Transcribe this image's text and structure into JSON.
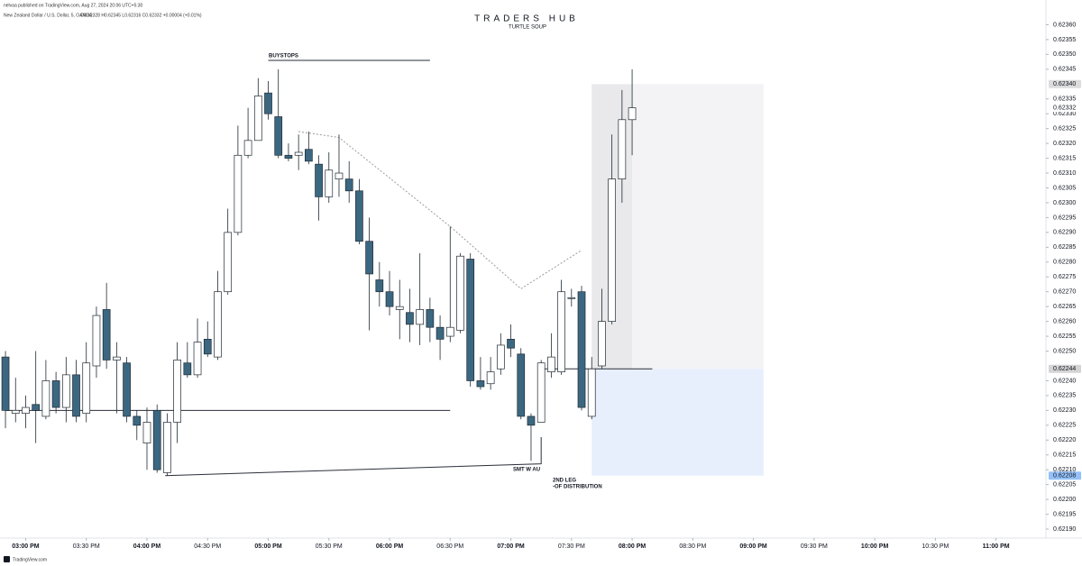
{
  "chart_data": {
    "type": "candlestick",
    "published": "nelvaa published on TradingView.com, Aug 27, 2024 20:06 UTC+5:30",
    "symbol": "New Zealand Dollar / U.S. Dollar, 5, OANDA",
    "ohlc_text": "O0.62328 H0.62345 L0.62316 C0.62332 +0.00004 (+0.01%)",
    "title": "TRADERS HUB",
    "subtitle": "TURTLE SOUP",
    "footer": "TradingView.com",
    "annotations": [
      "BUYSTOPS",
      "SMT W AU",
      "2ND LEG",
      "-OF DISTRIBUTION"
    ],
    "up_color": "#ffffff",
    "down_color": "#3c6781",
    "outline_color": "#1f2a33",
    "x": [
      890,
      895,
      900,
      905,
      910,
      915,
      920,
      925,
      930,
      935,
      940,
      945,
      950,
      955,
      960,
      965,
      970,
      975,
      980,
      985,
      990,
      995,
      1000,
      1005,
      1010,
      1015,
      1020,
      1025,
      1030,
      1035,
      1040,
      1045,
      1050,
      1055,
      1060,
      1065,
      1070,
      1075,
      1080,
      1085,
      1090,
      1095,
      1100,
      1105,
      1110,
      1115,
      1120,
      1125,
      1130,
      1135,
      1140,
      1145,
      1150,
      1155,
      1160,
      1165,
      1170,
      1175,
      1180,
      1185,
      1190,
      1195,
      1200
    ],
    "open": [
      0.62248,
      0.62229,
      0.62229,
      0.62232,
      0.62228,
      0.6224,
      0.62231,
      0.62242,
      0.62229,
      0.62245,
      0.62264,
      0.62247,
      0.62246,
      0.62228,
      0.62219,
      0.6223,
      0.62209,
      0.62226,
      0.62246,
      0.62242,
      0.62254,
      0.62248,
      0.6227,
      0.6229,
      0.62316,
      0.62321,
      0.62337,
      0.62329,
      0.62316,
      0.62316,
      0.62318,
      0.62313,
      0.62302,
      0.62308,
      0.62308,
      0.62304,
      0.62287,
      0.62274,
      0.6227,
      0.62264,
      0.62263,
      0.62259,
      0.62264,
      0.62258,
      0.62255,
      0.62257,
      0.62281,
      0.6224,
      0.62239,
      0.62244,
      0.62254,
      0.62249,
      0.62228,
      0.62226,
      0.62243,
      0.62243,
      0.62268,
      0.6227,
      0.62228,
      0.62245,
      0.6226,
      0.62308,
      0.62328
    ],
    "high": [
      0.6225,
      0.62241,
      0.62235,
      0.6225,
      0.62247,
      0.62243,
      0.62248,
      0.62247,
      0.62253,
      0.62265,
      0.62273,
      0.62253,
      0.62248,
      0.6223,
      0.62231,
      0.62232,
      0.62229,
      0.62253,
      0.62253,
      0.62261,
      0.6226,
      0.62277,
      0.62298,
      0.62326,
      0.62332,
      0.62342,
      0.62341,
      0.62345,
      0.6232,
      0.62323,
      0.62324,
      0.62316,
      0.62317,
      0.62323,
      0.62314,
      0.62308,
      0.62295,
      0.6228,
      0.62277,
      0.62274,
      0.62271,
      0.62283,
      0.62268,
      0.62262,
      0.62292,
      0.62283,
      0.62283,
      0.62248,
      0.62248,
      0.62256,
      0.62259,
      0.62251,
      0.62229,
      0.62247,
      0.62256,
      0.62274,
      0.62271,
      0.62272,
      0.62248,
      0.62271,
      0.62323,
      0.62338,
      0.62345
    ],
    "low": [
      0.62224,
      0.62226,
      0.62224,
      0.62219,
      0.62227,
      0.62229,
      0.62226,
      0.62226,
      0.62226,
      0.62241,
      0.62244,
      0.62229,
      0.62226,
      0.6222,
      0.6221,
      0.62209,
      0.62208,
      0.62219,
      0.62241,
      0.62241,
      0.62248,
      0.62247,
      0.62269,
      0.62289,
      0.62315,
      0.62321,
      0.62328,
      0.62315,
      0.62314,
      0.62311,
      0.62313,
      0.62294,
      0.623,
      0.62302,
      0.623,
      0.62286,
      0.62257,
      0.62265,
      0.62262,
      0.62254,
      0.62253,
      0.62252,
      0.62253,
      0.62247,
      0.62253,
      0.62256,
      0.62238,
      0.62237,
      0.62237,
      0.62242,
      0.62248,
      0.62227,
      0.62213,
      0.62226,
      0.62241,
      0.62242,
      0.62265,
      0.6223,
      0.62227,
      0.62244,
      0.62259,
      0.623,
      0.62316
    ],
    "close": [
      0.6223,
      0.6223,
      0.62231,
      0.6223,
      0.6224,
      0.62231,
      0.62242,
      0.62228,
      0.62246,
      0.62262,
      0.62247,
      0.62248,
      0.62228,
      0.62225,
      0.62226,
      0.6221,
      0.62226,
      0.62247,
      0.62242,
      0.62253,
      0.62249,
      0.6227,
      0.6229,
      0.62316,
      0.62321,
      0.62336,
      0.6233,
      0.62316,
      0.62315,
      0.62317,
      0.62314,
      0.62302,
      0.62311,
      0.6231,
      0.62304,
      0.62287,
      0.62276,
      0.6227,
      0.62265,
      0.62265,
      0.62259,
      0.62264,
      0.62258,
      0.62254,
      0.62258,
      0.62282,
      0.6224,
      0.62238,
      0.62243,
      0.62252,
      0.62251,
      0.62228,
      0.62225,
      0.62246,
      0.62248,
      0.6227,
      0.62268,
      0.62231,
      0.62244,
      0.6226,
      0.62308,
      0.62328,
      0.62332
    ],
    "xlim": [
      887.3,
      1404.7
    ],
    "ylim": [
      0.62187,
      0.62365
    ],
    "xticks": [
      {
        "value": 900,
        "label": "03:00 PM"
      },
      {
        "value": 930,
        "label": "03:30 PM"
      },
      {
        "value": 960,
        "label": "04:00 PM"
      },
      {
        "value": 990,
        "label": "04:30 PM"
      },
      {
        "value": 1020,
        "label": "05:00 PM"
      },
      {
        "value": 1050,
        "label": "05:30 PM"
      },
      {
        "value": 1080,
        "label": "06:00 PM"
      },
      {
        "value": 1110,
        "label": "06:30 PM"
      },
      {
        "value": 1140,
        "label": "07:00 PM"
      },
      {
        "value": 1170,
        "label": "07:30 PM"
      },
      {
        "value": 1200,
        "label": "08:00 PM"
      },
      {
        "value": 1230,
        "label": "08:30 PM"
      },
      {
        "value": 1260,
        "label": "09:00 PM"
      },
      {
        "value": 1290,
        "label": "09:30 PM"
      },
      {
        "value": 1320,
        "label": "10:00 PM"
      },
      {
        "value": 1350,
        "label": "10:30 PM"
      },
      {
        "value": 1380,
        "label": "11:00 PM"
      }
    ],
    "yticks": [
      {
        "value": 0.6219,
        "label": "0.62190"
      },
      0.62195,
      {
        "value": 0.622,
        "label": "0.62200"
      },
      0.62205,
      {
        "value": 0.6221,
        "label": "0.62210"
      },
      0.62215,
      {
        "value": 0.6222,
        "label": "0.62220"
      },
      0.62225,
      {
        "value": 0.6223,
        "label": "0.62230"
      },
      0.62235,
      {
        "value": 0.6224,
        "label": "0.62240"
      },
      {
        "value": 0.6225,
        "label": "0.62250"
      },
      0.62255,
      {
        "value": 0.6226,
        "label": "0.62260"
      },
      0.62265,
      {
        "value": 0.6227,
        "label": "0.62270"
      },
      0.62275,
      {
        "value": 0.6228,
        "label": "0.62280"
      },
      0.62285,
      {
        "value": 0.6229,
        "label": "0.62290"
      },
      0.62295,
      {
        "value": 0.623,
        "label": "0.62300"
      },
      0.62305,
      {
        "value": 0.6231,
        "label": "0.62310"
      },
      0.62315,
      {
        "value": 0.6232,
        "label": "0.62320"
      },
      0.62325,
      {
        "value": 0.6233,
        "label": "0.62330"
      },
      0.62335,
      0.62345,
      {
        "value": 0.6235,
        "label": "0.62350"
      },
      0.62355,
      {
        "value": 0.6236,
        "label": "0.62360"
      }
    ],
    "price_labels": [
      {
        "value": 0.6234,
        "label": "0.62340",
        "color": "#dcdcdc"
      },
      {
        "value": 0.62332,
        "label": "0.62332",
        "color": "#ffffff"
      },
      {
        "value": 0.62244,
        "label": "0.62244",
        "color": "#d4d4d4"
      },
      {
        "value": 0.62208,
        "label": "0.62208",
        "color": "#93c0f8"
      }
    ],
    "position": {
      "x_start": 1180,
      "x_now": 1200,
      "x_end": 1265,
      "top": 0.6234,
      "entry": 0.62244,
      "bottom": 0.62208
    },
    "drawings": [
      {
        "x": [
          1020,
          1100
        ],
        "y": [
          0.62348,
          0.62348
        ],
        "style": "solid"
      },
      {
        "x": [
          890,
          1110
        ],
        "y": [
          0.6223,
          0.6223
        ],
        "style": "solid"
      },
      {
        "x": [
          969,
          1155,
          1155
        ],
        "y": [
          0.62208,
          0.62212,
          0.62221
        ],
        "style": "solid"
      },
      {
        "x": [
          1155,
          1210
        ],
        "y": [
          0.62244,
          0.62244
        ],
        "style": "solid"
      },
      {
        "x": [
          1035,
          1055,
          1110,
          1145,
          1175
        ],
        "y": [
          0.62324,
          0.62322,
          0.62292,
          0.62271,
          0.62284
        ],
        "style": "dotted"
      }
    ]
  }
}
